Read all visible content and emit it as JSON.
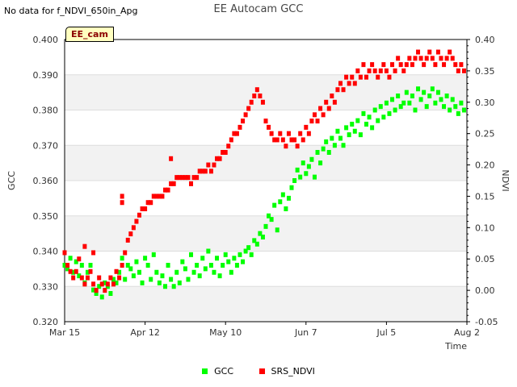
{
  "header": {
    "note": "No data for f_NDVI_650in_Apg",
    "title": "EE Autocam GCC",
    "tag": "EE_cam"
  },
  "legend": {
    "gcc_label": "GCC",
    "ndvi_label": "SRS_NDVI"
  },
  "chart_data": {
    "type": "scatter",
    "title": "EE Autocam GCC",
    "xlabel": "Time",
    "ylabel": "GCC",
    "y2label": "NDVI",
    "x_ticks": [
      {
        "label": "Mar 15",
        "day": 0
      },
      {
        "label": "Apr 12",
        "day": 28
      },
      {
        "label": "May 10",
        "day": 56
      },
      {
        "label": "Jun 7",
        "day": 84
      },
      {
        "label": "Jul 5",
        "day": 112
      },
      {
        "label": "Aug 2",
        "day": 140
      }
    ],
    "xlim": [
      0,
      140
    ],
    "ylim": [
      0.32,
      0.4
    ],
    "y2lim": [
      -0.05,
      0.4
    ],
    "y_ticks": [
      "0.320",
      "0.330",
      "0.340",
      "0.350",
      "0.360",
      "0.370",
      "0.380",
      "0.390",
      "0.400"
    ],
    "y2_ticks": [
      "-0.05",
      "0.00",
      "0.05",
      "0.10",
      "0.15",
      "0.20",
      "0.25",
      "0.30",
      "0.35",
      "0.40"
    ],
    "series": [
      {
        "name": "GCC",
        "color": "#00ff00",
        "axis": "left",
        "points": [
          [
            0,
            0.336
          ],
          [
            1,
            0.335
          ],
          [
            2,
            0.338
          ],
          [
            3,
            0.334
          ],
          [
            4,
            0.337
          ],
          [
            5,
            0.333
          ],
          [
            6,
            0.336
          ],
          [
            7,
            0.331
          ],
          [
            8,
            0.334
          ],
          [
            9,
            0.336
          ],
          [
            10,
            0.329
          ],
          [
            11,
            0.328
          ],
          [
            12,
            0.33
          ],
          [
            13,
            0.327
          ],
          [
            14,
            0.331
          ],
          [
            15,
            0.33
          ],
          [
            16,
            0.328
          ],
          [
            17,
            0.332
          ],
          [
            18,
            0.331
          ],
          [
            19,
            0.334
          ],
          [
            20,
            0.338
          ],
          [
            21,
            0.332
          ],
          [
            22,
            0.336
          ],
          [
            23,
            0.335
          ],
          [
            24,
            0.333
          ],
          [
            25,
            0.337
          ],
          [
            26,
            0.334
          ],
          [
            27,
            0.331
          ],
          [
            28,
            0.338
          ],
          [
            29,
            0.336
          ],
          [
            30,
            0.332
          ],
          [
            31,
            0.339
          ],
          [
            32,
            0.334
          ],
          [
            33,
            0.331
          ],
          [
            34,
            0.333
          ],
          [
            35,
            0.33
          ],
          [
            36,
            0.336
          ],
          [
            37,
            0.332
          ],
          [
            38,
            0.33
          ],
          [
            39,
            0.334
          ],
          [
            40,
            0.331
          ],
          [
            41,
            0.337
          ],
          [
            42,
            0.335
          ],
          [
            43,
            0.332
          ],
          [
            44,
            0.339
          ],
          [
            45,
            0.334
          ],
          [
            46,
            0.336
          ],
          [
            47,
            0.333
          ],
          [
            48,
            0.338
          ],
          [
            49,
            0.335
          ],
          [
            50,
            0.34
          ],
          [
            51,
            0.336
          ],
          [
            52,
            0.334
          ],
          [
            53,
            0.338
          ],
          [
            54,
            0.333
          ],
          [
            55,
            0.336
          ],
          [
            56,
            0.339
          ],
          [
            57,
            0.337
          ],
          [
            58,
            0.334
          ],
          [
            59,
            0.338
          ],
          [
            60,
            0.336
          ],
          [
            61,
            0.339
          ],
          [
            62,
            0.337
          ],
          [
            63,
            0.34
          ],
          [
            64,
            0.341
          ],
          [
            65,
            0.339
          ],
          [
            66,
            0.343
          ],
          [
            67,
            0.342
          ],
          [
            68,
            0.345
          ],
          [
            69,
            0.344
          ],
          [
            70,
            0.347
          ],
          [
            71,
            0.35
          ],
          [
            72,
            0.349
          ],
          [
            73,
            0.353
          ],
          [
            74,
            0.346
          ],
          [
            75,
            0.354
          ],
          [
            76,
            0.356
          ],
          [
            77,
            0.352
          ],
          [
            78,
            0.355
          ],
          [
            79,
            0.358
          ],
          [
            80,
            0.36
          ],
          [
            81,
            0.363
          ],
          [
            82,
            0.361
          ],
          [
            83,
            0.365
          ],
          [
            84,
            0.362
          ],
          [
            85,
            0.364
          ],
          [
            86,
            0.366
          ],
          [
            87,
            0.361
          ],
          [
            88,
            0.368
          ],
          [
            89,
            0.365
          ],
          [
            90,
            0.369
          ],
          [
            91,
            0.371
          ],
          [
            92,
            0.368
          ],
          [
            93,
            0.372
          ],
          [
            94,
            0.37
          ],
          [
            95,
            0.374
          ],
          [
            96,
            0.372
          ],
          [
            97,
            0.37
          ],
          [
            98,
            0.375
          ],
          [
            99,
            0.373
          ],
          [
            100,
            0.376
          ],
          [
            101,
            0.374
          ],
          [
            102,
            0.377
          ],
          [
            103,
            0.373
          ],
          [
            104,
            0.379
          ],
          [
            105,
            0.376
          ],
          [
            106,
            0.378
          ],
          [
            107,
            0.375
          ],
          [
            108,
            0.38
          ],
          [
            109,
            0.377
          ],
          [
            110,
            0.381
          ],
          [
            111,
            0.378
          ],
          [
            112,
            0.382
          ],
          [
            113,
            0.379
          ],
          [
            114,
            0.383
          ],
          [
            115,
            0.38
          ],
          [
            116,
            0.384
          ],
          [
            117,
            0.381
          ],
          [
            118,
            0.382
          ],
          [
            119,
            0.385
          ],
          [
            120,
            0.382
          ],
          [
            121,
            0.384
          ],
          [
            122,
            0.38
          ],
          [
            123,
            0.386
          ],
          [
            124,
            0.383
          ],
          [
            125,
            0.385
          ],
          [
            126,
            0.381
          ],
          [
            127,
            0.384
          ],
          [
            128,
            0.386
          ],
          [
            129,
            0.382
          ],
          [
            130,
            0.385
          ],
          [
            131,
            0.383
          ],
          [
            132,
            0.381
          ],
          [
            133,
            0.384
          ],
          [
            134,
            0.38
          ],
          [
            135,
            0.383
          ],
          [
            136,
            0.381
          ],
          [
            137,
            0.379
          ],
          [
            138,
            0.382
          ],
          [
            139,
            0.38
          ]
        ]
      },
      {
        "name": "SRS_NDVI",
        "color": "#ff0000",
        "axis": "right",
        "points": [
          [
            0,
            0.06
          ],
          [
            1,
            0.04
          ],
          [
            2,
            0.03
          ],
          [
            3,
            0.02
          ],
          [
            4,
            0.03
          ],
          [
            5,
            0.05
          ],
          [
            6,
            0.02
          ],
          [
            7,
            0.01
          ],
          [
            8,
            0.02
          ],
          [
            9,
            0.03
          ],
          [
            10,
            0.01
          ],
          [
            11,
            0.0
          ],
          [
            12,
            0.02
          ],
          [
            13,
            0.01
          ],
          [
            14,
            0.0
          ],
          [
            15,
            0.01
          ],
          [
            16,
            0.02
          ],
          [
            17,
            0.01
          ],
          [
            18,
            0.03
          ],
          [
            19,
            0.02
          ],
          [
            20,
            0.04
          ],
          [
            21,
            0.06
          ],
          [
            22,
            0.08
          ],
          [
            23,
            0.09
          ],
          [
            24,
            0.1
          ],
          [
            25,
            0.11
          ],
          [
            26,
            0.12
          ],
          [
            27,
            0.13
          ],
          [
            28,
            0.13
          ],
          [
            29,
            0.14
          ],
          [
            30,
            0.14
          ],
          [
            31,
            0.15
          ],
          [
            32,
            0.15
          ],
          [
            33,
            0.15
          ],
          [
            34,
            0.15
          ],
          [
            35,
            0.16
          ],
          [
            36,
            0.16
          ],
          [
            37,
            0.17
          ],
          [
            38,
            0.17
          ],
          [
            39,
            0.18
          ],
          [
            40,
            0.18
          ],
          [
            41,
            0.18
          ],
          [
            42,
            0.18
          ],
          [
            43,
            0.18
          ],
          [
            44,
            0.17
          ],
          [
            45,
            0.18
          ],
          [
            46,
            0.18
          ],
          [
            47,
            0.19
          ],
          [
            48,
            0.19
          ],
          [
            49,
            0.19
          ],
          [
            50,
            0.2
          ],
          [
            51,
            0.19
          ],
          [
            52,
            0.2
          ],
          [
            53,
            0.21
          ],
          [
            54,
            0.21
          ],
          [
            55,
            0.22
          ],
          [
            56,
            0.22
          ],
          [
            57,
            0.23
          ],
          [
            58,
            0.24
          ],
          [
            59,
            0.25
          ],
          [
            60,
            0.25
          ],
          [
            61,
            0.26
          ],
          [
            62,
            0.27
          ],
          [
            63,
            0.28
          ],
          [
            64,
            0.29
          ],
          [
            65,
            0.3
          ],
          [
            66,
            0.31
          ],
          [
            67,
            0.32
          ],
          [
            68,
            0.31
          ],
          [
            69,
            0.3
          ],
          [
            70,
            0.27
          ],
          [
            71,
            0.26
          ],
          [
            72,
            0.25
          ],
          [
            73,
            0.24
          ],
          [
            74,
            0.24
          ],
          [
            75,
            0.25
          ],
          [
            76,
            0.24
          ],
          [
            77,
            0.23
          ],
          [
            78,
            0.25
          ],
          [
            79,
            0.24
          ],
          [
            80,
            0.24
          ],
          [
            81,
            0.23
          ],
          [
            82,
            0.25
          ],
          [
            83,
            0.24
          ],
          [
            84,
            0.26
          ],
          [
            85,
            0.25
          ],
          [
            86,
            0.27
          ],
          [
            87,
            0.28
          ],
          [
            88,
            0.27
          ],
          [
            89,
            0.29
          ],
          [
            90,
            0.28
          ],
          [
            91,
            0.3
          ],
          [
            92,
            0.29
          ],
          [
            93,
            0.31
          ],
          [
            94,
            0.3
          ],
          [
            95,
            0.32
          ],
          [
            96,
            0.33
          ],
          [
            97,
            0.32
          ],
          [
            98,
            0.34
          ],
          [
            99,
            0.33
          ],
          [
            100,
            0.34
          ],
          [
            101,
            0.33
          ],
          [
            102,
            0.35
          ],
          [
            103,
            0.34
          ],
          [
            104,
            0.36
          ],
          [
            105,
            0.34
          ],
          [
            106,
            0.35
          ],
          [
            107,
            0.36
          ],
          [
            108,
            0.35
          ],
          [
            109,
            0.34
          ],
          [
            110,
            0.35
          ],
          [
            111,
            0.36
          ],
          [
            112,
            0.35
          ],
          [
            113,
            0.34
          ],
          [
            114,
            0.36
          ],
          [
            115,
            0.35
          ],
          [
            116,
            0.37
          ],
          [
            117,
            0.36
          ],
          [
            118,
            0.35
          ],
          [
            119,
            0.36
          ],
          [
            120,
            0.37
          ],
          [
            121,
            0.36
          ],
          [
            122,
            0.37
          ],
          [
            123,
            0.38
          ],
          [
            124,
            0.37
          ],
          [
            125,
            0.36
          ],
          [
            126,
            0.37
          ],
          [
            127,
            0.38
          ],
          [
            128,
            0.37
          ],
          [
            129,
            0.36
          ],
          [
            130,
            0.38
          ],
          [
            131,
            0.37
          ],
          [
            132,
            0.36
          ],
          [
            133,
            0.37
          ],
          [
            134,
            0.38
          ],
          [
            135,
            0.37
          ],
          [
            136,
            0.36
          ],
          [
            137,
            0.35
          ],
          [
            138,
            0.36
          ],
          [
            139,
            0.35
          ],
          [
            20,
            0.15
          ],
          [
            20,
            0.14
          ],
          [
            37,
            0.21
          ],
          [
            7,
            0.07
          ],
          [
            10,
            0.06
          ]
        ]
      }
    ]
  }
}
